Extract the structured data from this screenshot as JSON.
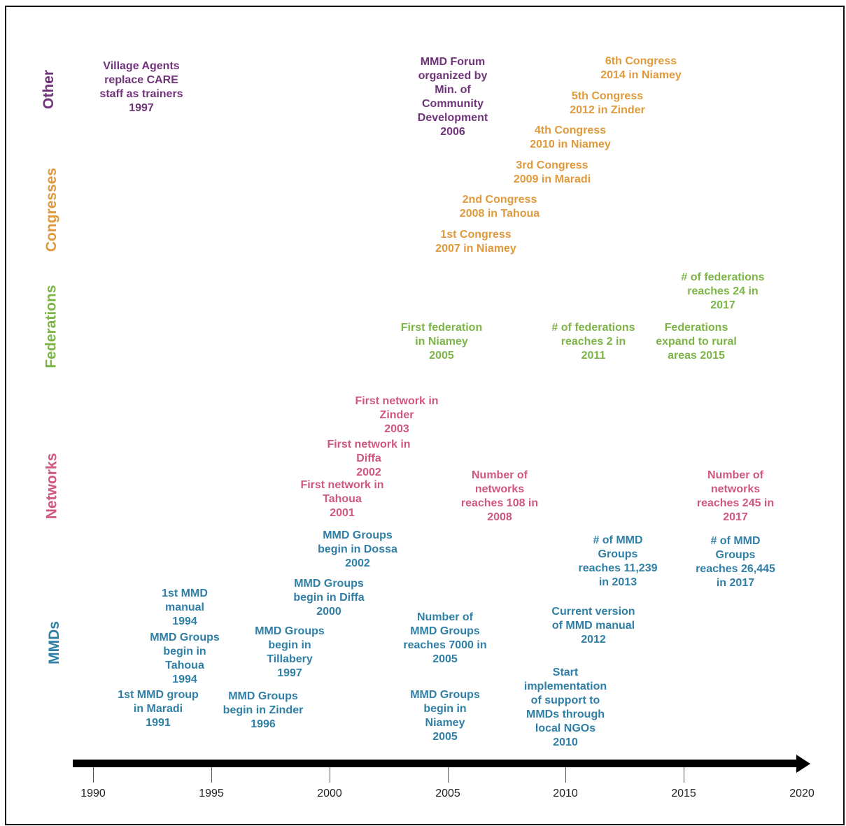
{
  "colors": {
    "other": "#6f3479",
    "congresses": "#e09a3c",
    "federations": "#7db547",
    "networks": "#d0577d",
    "mmds": "#2f7fa6"
  },
  "categories": {
    "other": "Other",
    "congresses": "Congresses",
    "federations": "Federations",
    "networks": "Networks",
    "mmds": "MMDs"
  },
  "events": {
    "other": [
      [
        "Village Agents",
        "replace CARE",
        "staff as trainers",
        "1997"
      ],
      [
        "MMD Forum",
        "organized by",
        "Min. of",
        "Community",
        "Development",
        "2006"
      ]
    ],
    "congresses": [
      [
        "6th Congress",
        "2014 in Niamey"
      ],
      [
        "5th Congress",
        "2012 in Zinder"
      ],
      [
        "4th Congress",
        "2010 in Niamey"
      ],
      [
        "3rd Congress",
        "2009 in Maradi"
      ],
      [
        "2nd Congress",
        "2008 in Tahoua"
      ],
      [
        "1st Congress",
        "2007 in Niamey"
      ]
    ],
    "federations": [
      [
        "# of federations",
        "reaches 24 in",
        "2017"
      ],
      [
        "First federation",
        "in Niamey",
        "2005"
      ],
      [
        "# of federations",
        "reaches 2 in",
        "2011"
      ],
      [
        "Federations",
        "expand to rural",
        "areas 2015"
      ]
    ],
    "networks": [
      [
        "First network in",
        "Zinder",
        "2003"
      ],
      [
        "First network in",
        "Diffa",
        "2002"
      ],
      [
        "First network in",
        "Tahoua",
        "2001"
      ],
      [
        "Number of",
        "networks",
        "reaches 108 in",
        "2008"
      ],
      [
        "Number of",
        "networks",
        "reaches 245 in",
        "2017"
      ]
    ],
    "mmds": [
      [
        "MMD Groups",
        "begin in Dossa",
        "2002"
      ],
      [
        "# of MMD",
        "Groups",
        "reaches 11,239",
        "in 2013"
      ],
      [
        "# of MMD",
        "Groups",
        "reaches 26,445",
        "in 2017"
      ],
      [
        "1st MMD",
        "manual",
        "1994"
      ],
      [
        "MMD Groups",
        "begin in Diffa",
        "2000"
      ],
      [
        "Current version",
        "of MMD manual",
        "2012"
      ],
      [
        "Number of",
        "MMD Groups",
        "reaches 7000 in",
        "2005"
      ],
      [
        "MMD Groups",
        "begin in",
        "Tahoua",
        "1994"
      ],
      [
        "MMD Groups",
        "begin in",
        "Tillabery",
        "1997"
      ],
      [
        "Start",
        "implementation",
        "of support to",
        "MMDs through",
        "local NGOs",
        "2010"
      ],
      [
        "1st MMD group",
        "in Maradi",
        "1991"
      ],
      [
        "MMD Groups",
        "begin in Zinder",
        "1996"
      ],
      [
        "MMD Groups",
        "begin in",
        "Niamey",
        "2005"
      ]
    ]
  },
  "axis": {
    "ticks": [
      "1990",
      "1995",
      "2000",
      "2005",
      "2010",
      "2015",
      "2020"
    ]
  }
}
